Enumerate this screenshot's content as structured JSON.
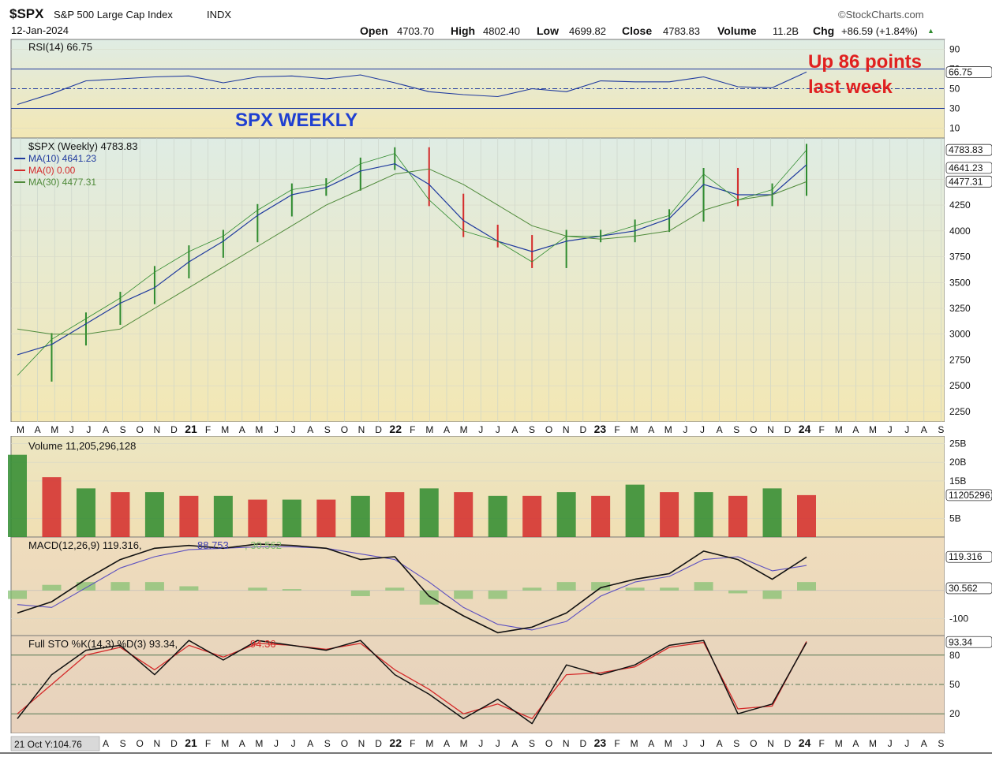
{
  "header": {
    "symbol": "$SPX",
    "name": "S&P 500 Large Cap Index",
    "exchange": "INDX",
    "date": "12-Jan-2024",
    "watermark": "©StockCharts.com",
    "open_label": "Open",
    "open": "4703.70",
    "high_label": "High",
    "high": "4802.40",
    "low_label": "Low",
    "low": "4699.82",
    "close_label": "Close",
    "close": "4783.83",
    "volume_label": "Volume",
    "volume": "11.2B",
    "chg_label": "Chg",
    "chg": "+86.59 (+1.84%)",
    "chg_arrow": "▲"
  },
  "annotations": {
    "title": "SPX WEEKLY",
    "note_line1": "Up 86 points",
    "note_line2": "last week"
  },
  "status": {
    "crosshair": "21 Oct Y:104.76"
  },
  "colors": {
    "up": "#2e8b2e",
    "down": "#d42a2a",
    "ma10": "#1f3a9e",
    "ma0": "#d42a2a",
    "ma30": "#4f8a3a",
    "annotation_blue": "#1f3fd1",
    "annotation_red": "#e02020"
  },
  "chart_data": [
    {
      "type": "line",
      "panel": "RSI",
      "legend": "RSI(14) 66.75",
      "value_label": "66.75",
      "y_ticks": [
        "90",
        "70",
        "50",
        "30",
        "10"
      ],
      "ylim": [
        0,
        100
      ],
      "levels": [
        70,
        50,
        30
      ],
      "x_months": [
        "2020-03",
        "2020-05",
        "2020-07",
        "2020-09",
        "2020-11",
        "2021-01",
        "2021-03",
        "2021-05",
        "2021-07",
        "2021-09",
        "2021-11",
        "2022-01",
        "2022-03",
        "2022-05",
        "2022-07",
        "2022-09",
        "2022-11",
        "2023-01",
        "2023-03",
        "2023-05",
        "2023-07",
        "2023-09",
        "2023-11",
        "2024-01"
      ],
      "values": [
        34,
        45,
        58,
        60,
        62,
        63,
        56,
        62,
        63,
        60,
        64,
        56,
        47,
        44,
        42,
        50,
        47,
        58,
        57,
        57,
        62,
        52,
        51,
        67
      ]
    },
    {
      "type": "line",
      "panel": "Price",
      "series_legend": [
        "$SPX (Weekly) 4783.83",
        "MA(10) 4641.23",
        "MA(0) 0.00",
        "MA(30) 4477.31"
      ],
      "value_labels": [
        "4783.83",
        "4641.23",
        "4477.31"
      ],
      "y_ticks": [
        "4500",
        "4250",
        "4000",
        "3750",
        "3500",
        "3250",
        "3000",
        "2750",
        "2500",
        "2250"
      ],
      "ylim": [
        2150,
        4900
      ],
      "x_months": [
        "2020-03",
        "2020-05",
        "2020-07",
        "2020-09",
        "2020-11",
        "2021-01",
        "2021-03",
        "2021-05",
        "2021-07",
        "2021-09",
        "2021-11",
        "2022-01",
        "2022-03",
        "2022-05",
        "2022-07",
        "2022-09",
        "2022-11",
        "2023-01",
        "2023-03",
        "2023-05",
        "2023-07",
        "2023-09",
        "2023-11",
        "2024-01"
      ],
      "series": [
        {
          "name": "$SPX (Weekly)",
          "values": [
            2600,
            2950,
            3150,
            3350,
            3600,
            3800,
            3950,
            4200,
            4400,
            4450,
            4650,
            4750,
            4300,
            4000,
            3900,
            3700,
            3950,
            3950,
            4050,
            4150,
            4550,
            4300,
            4400,
            4783
          ]
        },
        {
          "name": "MA(10)",
          "values": [
            2800,
            2900,
            3100,
            3300,
            3450,
            3700,
            3900,
            4150,
            4350,
            4420,
            4580,
            4650,
            4450,
            4100,
            3900,
            3800,
            3900,
            3950,
            4000,
            4120,
            4450,
            4350,
            4350,
            4641
          ]
        },
        {
          "name": "MA(30)",
          "values": [
            3050,
            3000,
            3000,
            3050,
            3250,
            3450,
            3650,
            3850,
            4050,
            4250,
            4400,
            4550,
            4600,
            4450,
            4250,
            4050,
            3950,
            3920,
            3950,
            4000,
            4200,
            4300,
            4350,
            4477
          ]
        }
      ]
    },
    {
      "type": "bar",
      "panel": "Volume",
      "legend": "Volume 11,205,296,128",
      "value_label": "11205296128",
      "y_ticks": [
        "25B",
        "20B",
        "15B",
        "5B"
      ],
      "ylim": [
        0,
        27
      ],
      "x_months": [
        "2020-03",
        "2020-05",
        "2020-07",
        "2020-09",
        "2020-11",
        "2021-01",
        "2021-03",
        "2021-05",
        "2021-07",
        "2021-09",
        "2021-11",
        "2022-01",
        "2022-03",
        "2022-05",
        "2022-07",
        "2022-09",
        "2022-11",
        "2023-01",
        "2023-03",
        "2023-05",
        "2023-07",
        "2023-09",
        "2023-11",
        "2024-01"
      ],
      "values": [
        22,
        16,
        13,
        12,
        12,
        11,
        11,
        10,
        10,
        10,
        11,
        12,
        13,
        12,
        11,
        11,
        12,
        11,
        14,
        12,
        12,
        11,
        13,
        11.2
      ]
    },
    {
      "type": "line",
      "panel": "MACD",
      "legend_prefix": "MACD(12,26,9)",
      "macd": "119.316",
      "signal": "88.753",
      "histogram": "30.562",
      "y_ticks": [
        "-100"
      ],
      "ylim": [
        -160,
        190
      ],
      "x_months": [
        "2020-03",
        "2020-05",
        "2020-07",
        "2020-09",
        "2020-11",
        "2021-01",
        "2021-03",
        "2021-05",
        "2021-07",
        "2021-09",
        "2021-11",
        "2022-01",
        "2022-03",
        "2022-05",
        "2022-07",
        "2022-09",
        "2022-11",
        "2023-01",
        "2023-03",
        "2023-05",
        "2023-07",
        "2023-09",
        "2023-11",
        "2024-01"
      ],
      "series": [
        {
          "name": "MACD",
          "values": [
            -80,
            -40,
            40,
            110,
            150,
            160,
            150,
            165,
            160,
            150,
            110,
            120,
            -20,
            -90,
            -150,
            -130,
            -80,
            10,
            40,
            60,
            140,
            110,
            40,
            119
          ]
        },
        {
          "name": "Signal",
          "values": [
            -50,
            -60,
            10,
            80,
            120,
            145,
            150,
            155,
            155,
            150,
            130,
            110,
            30,
            -60,
            -120,
            -140,
            -110,
            -20,
            30,
            50,
            110,
            120,
            70,
            89
          ]
        },
        {
          "name": "Histogram",
          "values": [
            -30,
            20,
            30,
            30,
            30,
            15,
            0,
            10,
            5,
            0,
            -20,
            10,
            -50,
            -30,
            -30,
            10,
            30,
            30,
            10,
            10,
            30,
            -10,
            -30,
            30
          ]
        }
      ]
    },
    {
      "type": "line",
      "panel": "Full STO",
      "legend_prefix": "Full STO %K(14,3) %D(3)",
      "k": "93.34",
      "d": "94.36",
      "value_label": "93.34",
      "y_ticks": [
        "80",
        "50",
        "20"
      ],
      "ylim": [
        0,
        100
      ],
      "levels": [
        80,
        50,
        20
      ],
      "x_months": [
        "2020-03",
        "2020-05",
        "2020-07",
        "2020-09",
        "2020-11",
        "2021-01",
        "2021-03",
        "2021-05",
        "2021-07",
        "2021-09",
        "2021-11",
        "2022-01",
        "2022-03",
        "2022-05",
        "2022-07",
        "2022-09",
        "2022-11",
        "2023-01",
        "2023-03",
        "2023-05",
        "2023-07",
        "2023-09",
        "2023-11",
        "2024-01"
      ],
      "series": [
        {
          "name": "%K",
          "values": [
            15,
            60,
            85,
            90,
            60,
            95,
            75,
            95,
            90,
            85,
            95,
            60,
            40,
            15,
            35,
            10,
            70,
            60,
            70,
            90,
            95,
            20,
            30,
            93
          ]
        },
        {
          "name": "%D",
          "values": [
            20,
            50,
            80,
            88,
            65,
            90,
            78,
            92,
            90,
            86,
            92,
            65,
            45,
            20,
            30,
            15,
            60,
            62,
            68,
            88,
            93,
            25,
            28,
            94
          ]
        }
      ]
    }
  ],
  "x_axis": {
    "price_labels": [
      "M",
      "A",
      "M",
      "J",
      "J",
      "A",
      "S",
      "O",
      "N",
      "D",
      "21",
      "F",
      "M",
      "A",
      "M",
      "J",
      "J",
      "A",
      "S",
      "O",
      "N",
      "D",
      "22",
      "F",
      "M",
      "A",
      "M",
      "J",
      "J",
      "A",
      "S",
      "O",
      "N",
      "D",
      "23",
      "F",
      "M",
      "A",
      "M",
      "J",
      "J",
      "A",
      "S",
      "O",
      "N",
      "D",
      "24",
      "F",
      "M",
      "A",
      "M",
      "J",
      "J",
      "A",
      "S"
    ],
    "bottom_labels": [
      "A",
      "S",
      "O",
      "N",
      "D",
      "21",
      "F",
      "M",
      "A",
      "M",
      "J",
      "J",
      "A",
      "S",
      "O",
      "N",
      "D",
      "22",
      "F",
      "M",
      "A",
      "M",
      "J",
      "J",
      "A",
      "S",
      "O",
      "N",
      "D",
      "23",
      "F",
      "M",
      "A",
      "M",
      "J",
      "J",
      "A",
      "S",
      "O",
      "N",
      "D",
      "24",
      "F",
      "M",
      "A",
      "M",
      "J",
      "J",
      "A",
      "S"
    ]
  }
}
